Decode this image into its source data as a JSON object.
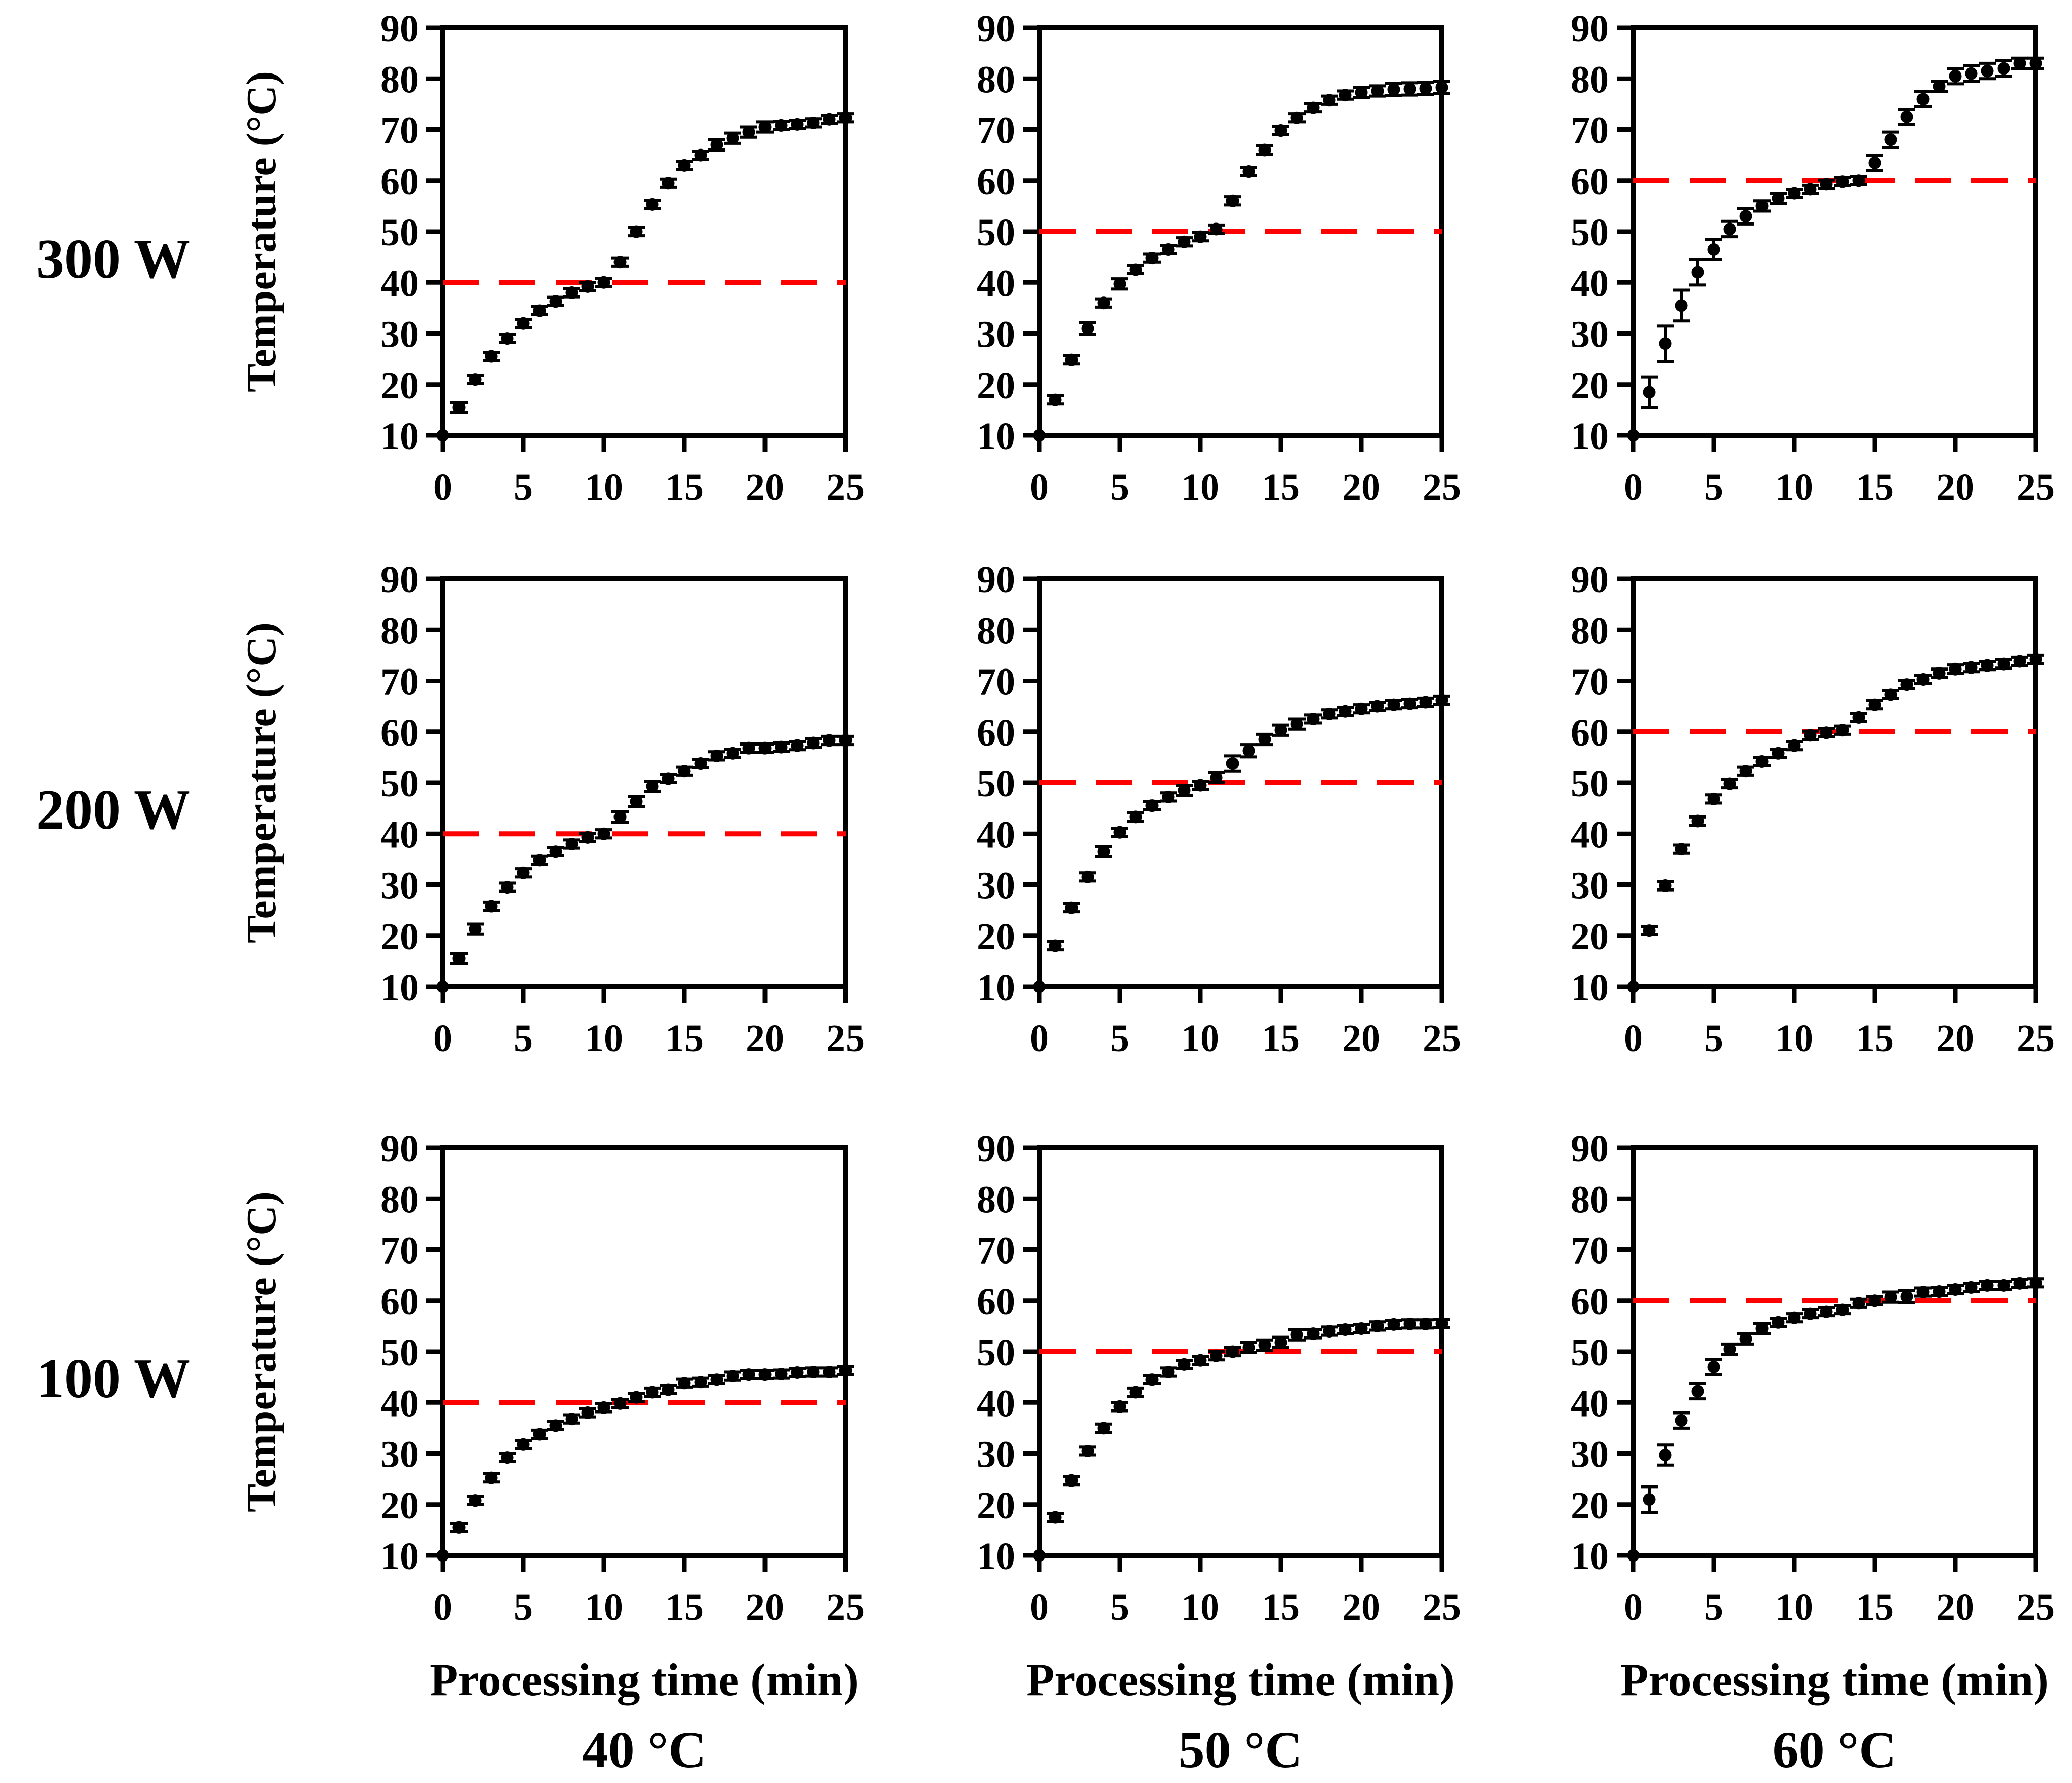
{
  "figure": {
    "background": "#ffffff",
    "text_color": "#000000"
  },
  "chart_data": {
    "type": "scatter",
    "layout": "3x3-grid",
    "title": "",
    "xlabel": "Processing time (min)",
    "ylabel": "Temperature (°C)",
    "row_labels": [
      "300 W",
      "200 W",
      "100 W"
    ],
    "col_labels": [
      "40 °C",
      "50 °C",
      "60 °C"
    ],
    "xlim": [
      0,
      25
    ],
    "ylim": [
      10,
      90
    ],
    "xticks": [
      0,
      5,
      10,
      15,
      20,
      25
    ],
    "yticks": [
      10,
      20,
      30,
      40,
      50,
      60,
      70,
      80,
      90
    ],
    "grid": "off",
    "legend": "none",
    "point_color": "#000000",
    "error_bar_color": "#000000",
    "target_line_color": "#ff0000",
    "target_line_style": "dashed",
    "x": [
      0,
      1,
      2,
      3,
      4,
      5,
      6,
      7,
      8,
      9,
      10,
      11,
      12,
      13,
      14,
      15,
      16,
      17,
      18,
      19,
      20,
      21,
      22,
      23,
      24,
      25
    ],
    "subplots": [
      {
        "row": "300 W",
        "col": "40 °C",
        "target": 40,
        "y": [
          10,
          15.5,
          21,
          25.5,
          29,
          32,
          34.5,
          36.3,
          38,
          39.2,
          40,
          44,
          50,
          55.3,
          59.5,
          63,
          65,
          67,
          68.3,
          69.5,
          70.5,
          70.8,
          71,
          71.3,
          72,
          72.3
        ],
        "yerr": [
          0,
          1,
          0.8,
          0.8,
          0.8,
          0.8,
          0.8,
          0.8,
          0.8,
          0.8,
          0.8,
          0.8,
          0.8,
          0.8,
          0.8,
          0.8,
          0.8,
          1,
          1,
          1,
          1,
          0.8,
          0.8,
          0.8,
          0.8,
          0.8
        ]
      },
      {
        "row": "300 W",
        "col": "50 °C",
        "target": 50,
        "y": [
          10,
          17,
          24.8,
          31,
          36,
          39.7,
          42.5,
          44.8,
          46.5,
          48,
          49,
          50.5,
          56,
          61.8,
          66,
          69.8,
          72.3,
          74.3,
          75.8,
          76.8,
          77.3,
          77.6,
          77.9,
          78,
          78.1,
          78.3
        ],
        "yerr": [
          0,
          0.8,
          0.8,
          1.2,
          0.8,
          1,
          0.8,
          0.8,
          0.8,
          0.8,
          0.8,
          0.8,
          0.8,
          0.8,
          0.8,
          0.8,
          0.8,
          0.8,
          0.8,
          0.8,
          1,
          1,
          1.2,
          1.2,
          1.2,
          1.2
        ]
      },
      {
        "row": "300 W",
        "col": "60 °C",
        "target": 60,
        "y": [
          10,
          18.5,
          28,
          35.5,
          42,
          46.5,
          50.5,
          53,
          55,
          56.5,
          57.5,
          58.3,
          59.3,
          59.8,
          60,
          63.5,
          68,
          72.5,
          76,
          78.5,
          80.5,
          81,
          81.5,
          82,
          83,
          83
        ],
        "yerr": [
          0,
          3,
          3.5,
          3,
          2.5,
          2,
          1.5,
          1.5,
          1,
          1,
          0.8,
          0.8,
          0.8,
          0.8,
          0.8,
          1.5,
          1.5,
          1.5,
          1.5,
          1,
          1.5,
          1.5,
          1.5,
          1.5,
          1,
          1
        ]
      },
      {
        "row": "200 W",
        "col": "40 °C",
        "target": 40,
        "y": [
          10,
          15.5,
          21.3,
          25.8,
          29.5,
          32.3,
          34.8,
          36.5,
          38,
          39.3,
          40,
          43.3,
          46.3,
          49.3,
          50.8,
          52.3,
          53.8,
          55.3,
          55.8,
          56.8,
          56.8,
          57,
          57.3,
          57.8,
          58.3,
          58.3
        ],
        "yerr": [
          0,
          1,
          1,
          0.8,
          0.8,
          0.8,
          0.8,
          0.8,
          0.8,
          0.8,
          0.8,
          1,
          1,
          1,
          0.8,
          0.8,
          0.8,
          0.8,
          0.8,
          0.8,
          0.8,
          0.8,
          0.8,
          0.8,
          0.8,
          0.8
        ]
      },
      {
        "row": "200 W",
        "col": "50 °C",
        "target": 50,
        "y": [
          10,
          18,
          25.5,
          31.5,
          36.5,
          40.3,
          43.3,
          45.5,
          47.2,
          48.5,
          49.5,
          51,
          53.8,
          56.3,
          58.5,
          60.3,
          61.5,
          62.5,
          63.5,
          64,
          64.5,
          65,
          65.3,
          65.5,
          65.8,
          66.2
        ],
        "yerr": [
          0,
          0.8,
          0.8,
          0.8,
          1,
          0.8,
          0.8,
          0.8,
          0.8,
          1,
          0.8,
          1,
          1.5,
          1.2,
          1,
          1,
          1,
          0.8,
          0.8,
          0.8,
          0.8,
          0.8,
          0.8,
          0.8,
          0.8,
          0.8
        ]
      },
      {
        "row": "200 W",
        "col": "60 °C",
        "target": 60,
        "y": [
          10,
          21,
          29.8,
          37,
          42.5,
          46.8,
          49.8,
          52.3,
          54.2,
          55.8,
          57.3,
          59.3,
          59.8,
          60.3,
          62.8,
          65.3,
          67.3,
          69.3,
          70.3,
          71.5,
          72.3,
          72.6,
          73,
          73.3,
          73.8,
          74.2
        ],
        "yerr": [
          0,
          0.8,
          0.8,
          0.8,
          0.8,
          0.8,
          0.8,
          0.8,
          0.8,
          0.8,
          0.8,
          0.8,
          0.8,
          0.8,
          0.8,
          0.8,
          0.8,
          0.8,
          0.8,
          0.8,
          0.8,
          0.8,
          0.8,
          0.8,
          0.8,
          0.8
        ]
      },
      {
        "row": "100 W",
        "col": "40 °C",
        "target": 40,
        "y": [
          10,
          15.5,
          20.8,
          25.2,
          29.2,
          31.8,
          33.8,
          35.5,
          36.8,
          38,
          39,
          39.8,
          41,
          42,
          42.5,
          43.8,
          44,
          44.5,
          45.2,
          45.5,
          45.5,
          45.6,
          45.9,
          46,
          46,
          46.3
        ],
        "yerr": [
          0,
          0.8,
          0.8,
          0.8,
          0.8,
          0.8,
          0.8,
          0.8,
          0.8,
          0.8,
          0.8,
          0.8,
          0.8,
          0.8,
          0.8,
          0.8,
          0.8,
          0.8,
          0.8,
          0.8,
          0.8,
          0.8,
          0.8,
          0.8,
          0.8,
          0.8
        ]
      },
      {
        "row": "100 W",
        "col": "50 °C",
        "target": 50,
        "y": [
          10,
          17.5,
          24.7,
          30.5,
          35,
          39.2,
          42,
          44.5,
          46,
          47.5,
          48.3,
          49.2,
          50,
          50.8,
          51.3,
          51.8,
          53.3,
          53.5,
          54,
          54.3,
          54.5,
          55,
          55.3,
          55.4,
          55.4,
          55.5
        ],
        "yerr": [
          0,
          0.8,
          0.8,
          0.8,
          0.8,
          0.8,
          0.8,
          0.8,
          0.8,
          0.8,
          0.8,
          0.8,
          0.8,
          1,
          1,
          1,
          1,
          0.8,
          0.8,
          0.8,
          0.8,
          0.8,
          0.8,
          0.8,
          0.8,
          0.8
        ]
      },
      {
        "row": "100 W",
        "col": "60 °C",
        "target": 60,
        "y": [
          10,
          21,
          29.7,
          36.5,
          42.2,
          47,
          50.5,
          52.5,
          54.5,
          55.7,
          56.6,
          57.4,
          57.8,
          58.2,
          59.5,
          60,
          60.7,
          60.8,
          61.7,
          61.8,
          62.2,
          62.6,
          63,
          63,
          63.4,
          63.5
        ],
        "yerr": [
          0,
          2.5,
          2,
          1.5,
          1.5,
          1.5,
          1,
          1,
          1,
          0.8,
          0.8,
          0.8,
          0.8,
          0.8,
          0.8,
          0.8,
          1,
          1.2,
          0.8,
          0.8,
          0.8,
          0.8,
          0.8,
          0.8,
          0.8,
          0.8
        ]
      }
    ]
  }
}
